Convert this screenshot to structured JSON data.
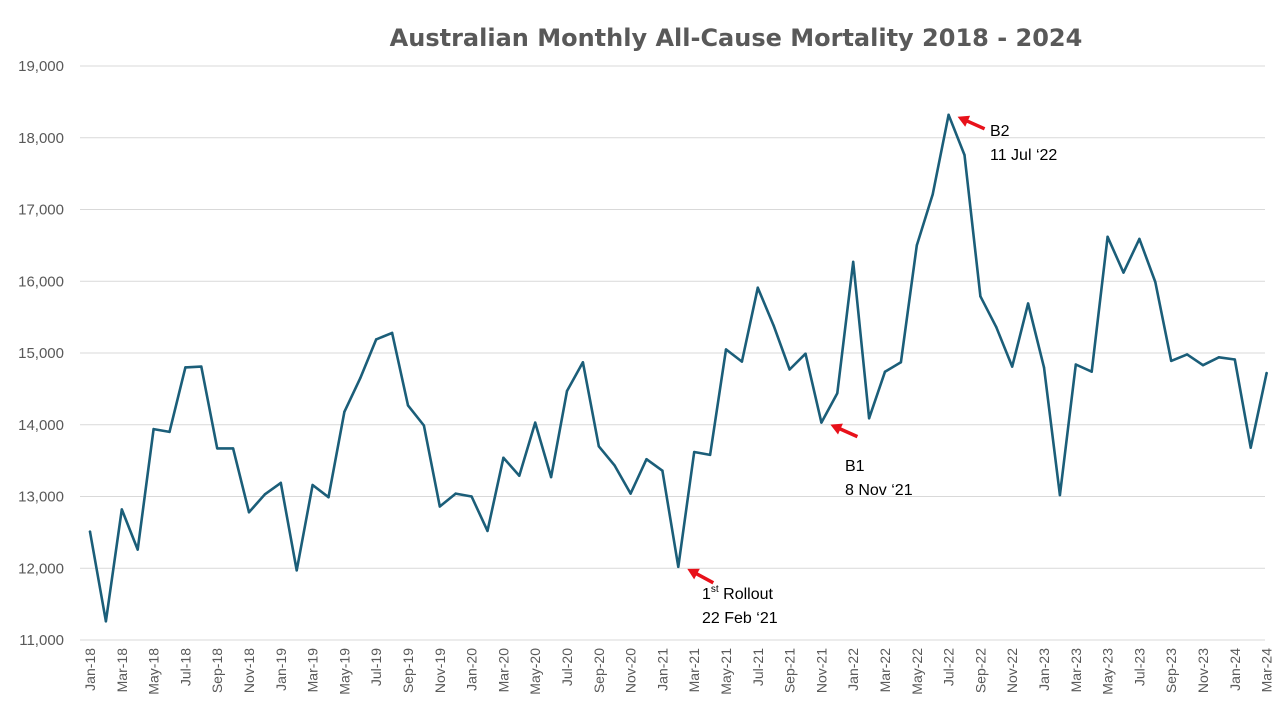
{
  "colors": {
    "series": "#1b5e79",
    "grid": "#d9d9d9",
    "text": "#595959",
    "arrow": "#e8111a"
  },
  "chart_data": {
    "type": "line",
    "title": "Australian Monthly All-Cause Mortality 2018 - 2024",
    "xlabel": "",
    "ylabel": "",
    "ylim": [
      11000,
      19000
    ],
    "yticks": [
      11000,
      12000,
      13000,
      14000,
      15000,
      16000,
      17000,
      18000,
      19000
    ],
    "ytick_labels": [
      "11,000",
      "12,000",
      "13,000",
      "14,000",
      "15,000",
      "16,000",
      "17,000",
      "18,000",
      "19,000"
    ],
    "grid": "horizontal",
    "legend": "none",
    "x": [
      "Jan-18",
      "Feb-18",
      "Mar-18",
      "Apr-18",
      "May-18",
      "Jun-18",
      "Jul-18",
      "Aug-18",
      "Sep-18",
      "Oct-18",
      "Nov-18",
      "Dec-18",
      "Jan-19",
      "Feb-19",
      "Mar-19",
      "Apr-19",
      "May-19",
      "Jun-19",
      "Jul-19",
      "Aug-19",
      "Sep-19",
      "Oct-19",
      "Nov-19",
      "Dec-19",
      "Jan-20",
      "Feb-20",
      "Mar-20",
      "Apr-20",
      "May-20",
      "Jun-20",
      "Jul-20",
      "Aug-20",
      "Sep-20",
      "Oct-20",
      "Nov-20",
      "Dec-20",
      "Jan-21",
      "Feb-21",
      "Mar-21",
      "Apr-21",
      "May-21",
      "Jun-21",
      "Jul-21",
      "Aug-21",
      "Sep-21",
      "Oct-21",
      "Nov-21",
      "Dec-21",
      "Jan-22",
      "Feb-22",
      "Mar-22",
      "Apr-22",
      "May-22",
      "Jun-22",
      "Jul-22",
      "Aug-22",
      "Sep-22",
      "Oct-22",
      "Nov-22",
      "Dec-22",
      "Jan-23",
      "Feb-23",
      "Mar-23",
      "Apr-23",
      "May-23",
      "Jun-23",
      "Jul-23",
      "Aug-23",
      "Sep-23",
      "Oct-23",
      "Nov-23",
      "Dec-23",
      "Jan-24",
      "Feb-24",
      "Mar-24"
    ],
    "x_tick_labels": [
      "Jan-18",
      "Mar-18",
      "May-18",
      "Jul-18",
      "Sep-18",
      "Nov-18",
      "Jan-19",
      "Mar-19",
      "May-19",
      "Jul-19",
      "Sep-19",
      "Nov-19",
      "Jan-20",
      "Mar-20",
      "May-20",
      "Jul-20",
      "Sep-20",
      "Nov-20",
      "Jan-21",
      "Mar-21",
      "May-21",
      "Jul-21",
      "Sep-21",
      "Nov-21",
      "Jan-22",
      "Mar-22",
      "May-22",
      "Jul-22",
      "Sep-22",
      "Nov-22",
      "Jan-23",
      "Mar-23",
      "May-23",
      "Jul-23",
      "Sep-23",
      "Nov-23",
      "Jan-24",
      "Mar-24"
    ],
    "series": [
      {
        "values": [
          12510,
          11260,
          12820,
          12260,
          13940,
          13900,
          14800,
          14810,
          13670,
          13670,
          12780,
          13030,
          13190,
          11970,
          13160,
          12990,
          14180,
          14650,
          15190,
          15280,
          14270,
          13990,
          12860,
          13040,
          13000,
          12520,
          13540,
          13290,
          14030,
          13270,
          14470,
          14870,
          13700,
          13430,
          13040,
          13520,
          13360,
          12020,
          13620,
          13580,
          15050,
          14880,
          15910,
          15380,
          14770,
          14990,
          14030,
          14440,
          16270,
          14090,
          14740,
          14870,
          16500,
          17210,
          18320,
          17760,
          15790,
          15360,
          14810,
          15690,
          14800,
          13020,
          14840,
          14740,
          16620,
          16120,
          16590,
          15990,
          14890,
          14980,
          14830,
          14940,
          14910,
          13680,
          14720
        ]
      }
    ],
    "annotations": [
      {
        "lines": [
          "st Rollout",
          "22 Feb ‘21"
        ],
        "prefix": "1",
        "superscript": "st",
        "main": " Rollout",
        "second": "22 Feb ‘21",
        "target": "Feb-21"
      },
      {
        "lines": [
          "B1",
          "8 Nov ‘21"
        ],
        "first": "B1",
        "second": "8 Nov ‘21",
        "target": "Nov-21"
      },
      {
        "lines": [
          "B2",
          "11 Jul ‘22"
        ],
        "first": "B2",
        "second": "11 Jul ‘22",
        "target": "Jul-22"
      }
    ]
  }
}
